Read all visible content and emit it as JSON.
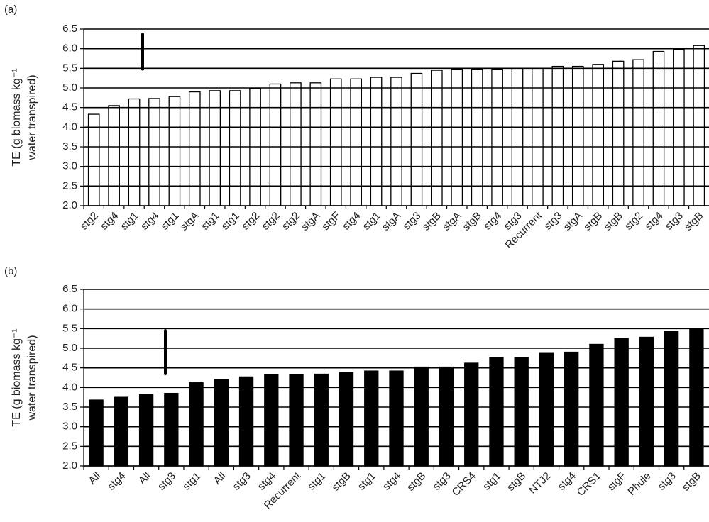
{
  "chart_data": [
    {
      "type": "bar",
      "panel": "(a)",
      "ylabel": [
        "TE (g biomass kg⁻¹",
        "water transpired)"
      ],
      "categories": [
        "stg2",
        "stg4",
        "stg1",
        "stg4",
        "stg1",
        "stgA",
        "stg1",
        "stg1",
        "stg2",
        "stg2",
        "stg2",
        "stgA",
        "stgF",
        "stg4",
        "stg1",
        "stgA",
        "stg3",
        "stgB",
        "stgA",
        "stgB",
        "stg4",
        "stg3",
        "Recurrent",
        "stg3",
        "stgA",
        "stgB",
        "stgB",
        "stg2",
        "stg4",
        "stg3",
        "stgB"
      ],
      "values": [
        4.33,
        4.55,
        4.72,
        4.73,
        4.78,
        4.9,
        4.93,
        4.93,
        4.99,
        5.1,
        5.13,
        5.13,
        5.23,
        5.23,
        5.27,
        5.27,
        5.37,
        5.45,
        5.48,
        5.48,
        5.48,
        5.5,
        5.5,
        5.55,
        5.55,
        5.6,
        5.68,
        5.72,
        5.93,
        5.98,
        6.08
      ],
      "color": "#ffffff",
      "edge_color": "#000000",
      "error_bar": [
        5.48,
        6.37
      ],
      "ylim": [
        2,
        6.5
      ],
      "yticks": [
        {
          "value": 2,
          "label": "2.0"
        },
        2.5,
        {
          "value": 3,
          "label": "3.0"
        },
        3.5,
        {
          "value": 4,
          "label": "4.0"
        },
        4.5,
        {
          "value": 5,
          "label": "5.0"
        },
        5.5,
        {
          "value": 6,
          "label": "6.0"
        },
        6.5
      ],
      "grid": true
    },
    {
      "type": "bar",
      "panel": "(b)",
      "ylabel": [
        "TE (g biomass kg⁻¹",
        "water transpired)"
      ],
      "categories": [
        "All",
        "stg4",
        "All",
        "stg3",
        "stg1",
        "All",
        "stg3",
        "stg4",
        "Recurrent",
        "stg1",
        "stgB",
        "stg1",
        "stg4",
        "stgB",
        "stg3",
        "CRS4",
        "stg1",
        "stgB",
        "NTJ2",
        "stg4",
        "CRS1",
        "stgF",
        "Phule",
        "stg3",
        "stgB"
      ],
      "values": [
        3.68,
        3.75,
        3.82,
        3.85,
        4.12,
        4.2,
        4.27,
        4.32,
        4.32,
        4.34,
        4.38,
        4.42,
        4.42,
        4.52,
        4.52,
        4.62,
        4.76,
        4.76,
        4.87,
        4.9,
        5.1,
        5.25,
        5.28,
        5.43,
        5.5
      ],
      "color": "#000000",
      "edge_color": "#000000",
      "error_bar": [
        4.35,
        5.45
      ],
      "ylim": [
        2,
        6.5
      ],
      "yticks": [
        {
          "value": 2,
          "label": "2.0"
        },
        2.5,
        {
          "value": 3,
          "label": "3.0"
        },
        3.5,
        {
          "value": 4,
          "label": "4.0"
        },
        4.5,
        {
          "value": 5,
          "label": "5.0"
        },
        5.5,
        {
          "value": 6,
          "label": "6.0"
        },
        6.5
      ],
      "grid": true
    }
  ]
}
